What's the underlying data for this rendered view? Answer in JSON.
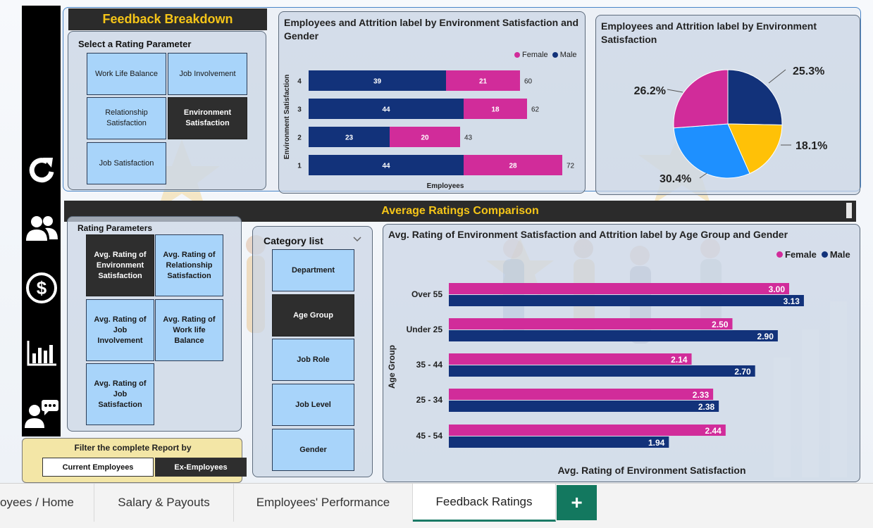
{
  "feedback_title": "Feedback Breakdown",
  "rating_param_panel": {
    "title": "Select a Rating Parameter",
    "tiles": [
      "Work Life Balance",
      "Job Involvement",
      "Relationship Satisfaction",
      "Environment Satisfaction",
      "Job Satisfaction"
    ],
    "selected": "Environment Satisfaction"
  },
  "bar_chart_title": "Employees and Attrition label by Environment Satisfaction and Gender",
  "pie_chart_title": "Employees and Attrition label by Environment Satisfaction",
  "avg_title": "Average Ratings Comparison",
  "rating_parameters": {
    "title": "Rating Parameters",
    "tiles": [
      "Avg. Rating of Environment Satisfaction",
      "Avg. Rating of Relationship Satisfaction",
      "Avg. Rating of Job Involvement",
      "Avg. Rating of Work life Balance",
      "Avg. Rating of Job Satisfaction"
    ],
    "selected": "Avg. Rating of Environment Satisfaction"
  },
  "category_list": {
    "title": "Category list",
    "items": [
      "Department",
      "Age Group",
      "Job Role",
      "Job Level",
      "Gender"
    ],
    "selected": "Age Group"
  },
  "hbar_chart_title": "Avg. Rating of Environment Satisfaction and Attrition label by Age Group and Gender",
  "filter": {
    "title": "Filter the complete Report by",
    "options": [
      "Current Employees",
      "Ex-Employees"
    ],
    "selected": "Ex-Employees"
  },
  "tabs": [
    "oyees / Home",
    "Salary & Payouts",
    "Employees' Performance",
    "Feedback Ratings"
  ],
  "active_tab": "Feedback Ratings",
  "add_tab_label": "+",
  "colors": {
    "female": "#d12c9a",
    "male": "#12327a",
    "pie_blue": "#1e90ff",
    "pie_yellow": "#ffc107",
    "accent_yellow": "#f5c518",
    "dark": "#2b2b2b"
  },
  "icons": [
    "refresh-icon",
    "people-icon",
    "dollar-icon",
    "bar-chart-icon",
    "feedback-person-icon",
    "chevron-down-icon"
  ],
  "chart_data": [
    {
      "type": "bar",
      "stacked": true,
      "orientation": "horizontal",
      "title": "Employees and Attrition label by Environment Satisfaction and Gender",
      "xlabel": "Employees",
      "ylabel": "Environment Satisfaction",
      "categories": [
        "4",
        "3",
        "2",
        "1"
      ],
      "series": [
        {
          "name": "Male",
          "values": [
            39,
            44,
            23,
            44
          ]
        },
        {
          "name": "Female",
          "values": [
            21,
            18,
            20,
            28
          ]
        }
      ],
      "totals": [
        60,
        62,
        43,
        72
      ],
      "legend": "top-right",
      "grid": false
    },
    {
      "type": "pie",
      "title": "Employees and Attrition label by Environment Satisfaction",
      "slices": [
        {
          "value": 25.3,
          "label": "25.3%",
          "color": "#12327a"
        },
        {
          "value": 18.1,
          "label": "18.1%",
          "color": "#ffc107"
        },
        {
          "value": 30.4,
          "label": "30.4%",
          "color": "#1e90ff"
        },
        {
          "value": 26.2,
          "label": "26.2%",
          "color": "#d12c9a"
        }
      ]
    },
    {
      "type": "bar",
      "orientation": "horizontal",
      "title": "Avg. Rating of Environment Satisfaction and Attrition label by Age Group and Gender",
      "xlabel": "Avg. Rating of Environment Satisfaction",
      "ylabel": "Age Group",
      "categories": [
        "Over 55",
        "Under 25",
        "35 - 44",
        "25 - 34",
        "45 - 54"
      ],
      "series": [
        {
          "name": "Female",
          "values": [
            3.0,
            2.5,
            2.14,
            2.33,
            2.44
          ],
          "labels": [
            "3.00",
            "2.50",
            "2.14",
            "2.33",
            "2.44"
          ]
        },
        {
          "name": "Male",
          "values": [
            3.13,
            2.9,
            2.7,
            2.38,
            1.94
          ],
          "labels": [
            "3.13",
            "2.90",
            "2.70",
            "2.38",
            "1.94"
          ]
        }
      ],
      "legend": "top-right",
      "grid": false
    }
  ]
}
